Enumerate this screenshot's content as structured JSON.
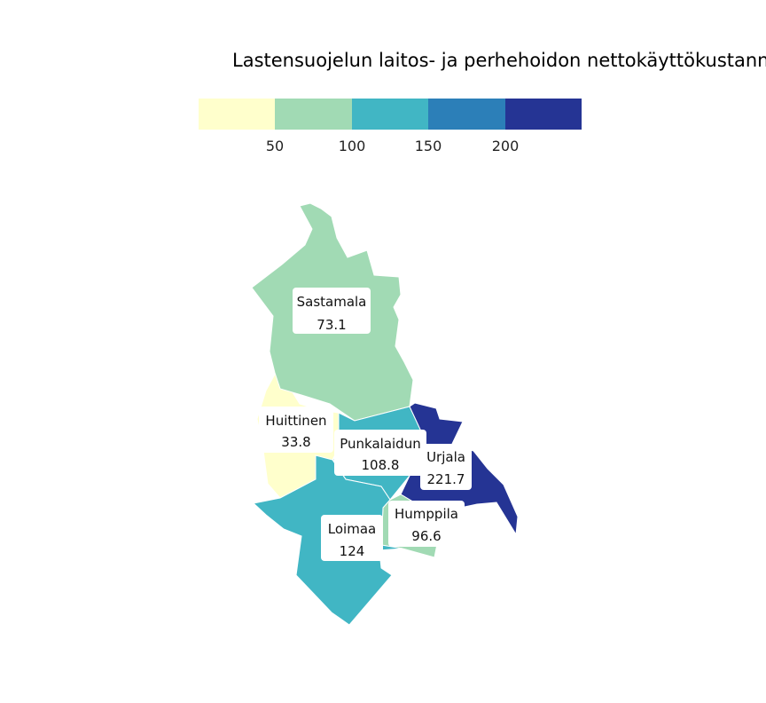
{
  "title": "Lastensuojelun laitos- ja perhehoidon nettokäyttökustann",
  "legend": {
    "colors": [
      "#ffffcc",
      "#a1dab4",
      "#41b6c4",
      "#2c7fb8",
      "#253494"
    ],
    "ticks": [
      "50",
      "100",
      "150",
      "200"
    ]
  },
  "regions": [
    {
      "name": "Sastamala",
      "value": "73.1",
      "color": "#a1dab4"
    },
    {
      "name": "Huittinen",
      "value": "33.8",
      "color": "#ffffcc"
    },
    {
      "name": "Punkalaidun",
      "value": "108.8",
      "color": "#41b6c4"
    },
    {
      "name": "Urjala",
      "value": "221.7",
      "color": "#253494"
    },
    {
      "name": "Humppila",
      "value": "96.6",
      "color": "#a1dab4"
    },
    {
      "name": "Loimaa",
      "value": "124",
      "color": "#41b6c4"
    }
  ]
}
